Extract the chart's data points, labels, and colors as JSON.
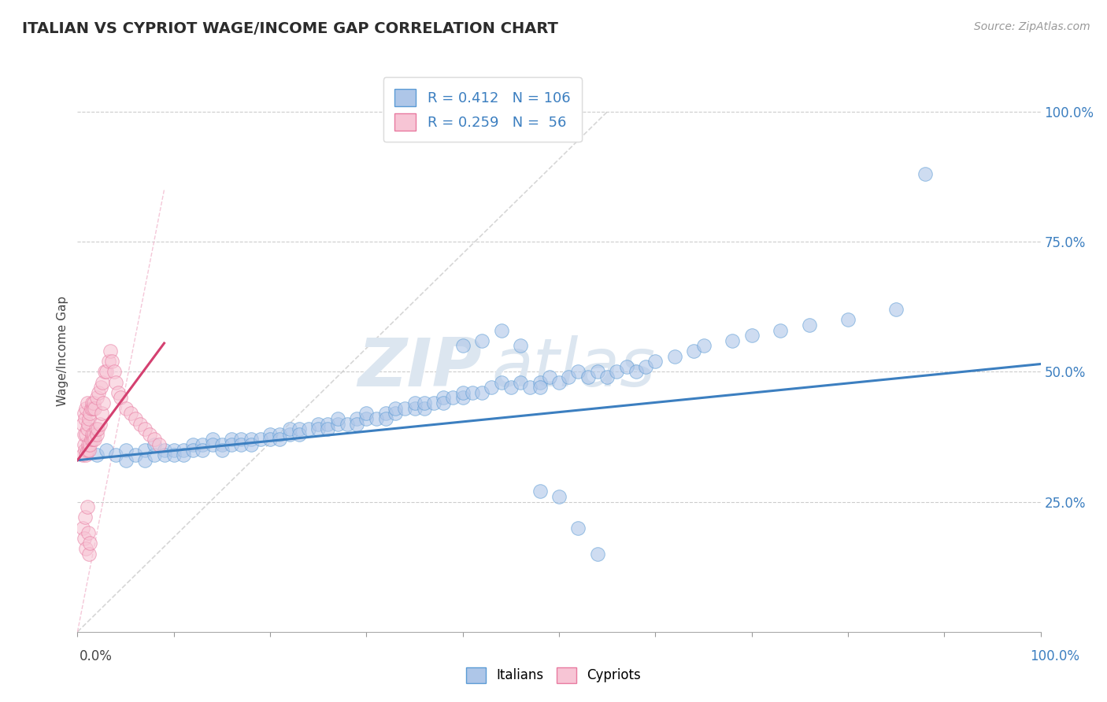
{
  "title": "ITALIAN VS CYPRIOT WAGE/INCOME GAP CORRELATION CHART",
  "source": "Source: ZipAtlas.com",
  "ylabel": "Wage/Income Gap",
  "ytick_values": [
    0.25,
    0.5,
    0.75,
    1.0
  ],
  "legend_labels": [
    "Italians",
    "Cypriots"
  ],
  "legend_italian": {
    "R": 0.412,
    "N": 106
  },
  "legend_cypriot": {
    "R": 0.259,
    "N": 56
  },
  "italian_color": "#aec6e8",
  "cypriot_color": "#f7c5d5",
  "italian_edge_color": "#5b9bd5",
  "cypriot_edge_color": "#e87aa0",
  "italian_line_color": "#3c7fc0",
  "cypriot_line_color": "#d44070",
  "ref_line_color": "#cccccc",
  "background_color": "#ffffff",
  "title_color": "#2c2c2c",
  "axis_color": "#999999",
  "legend_text_color": "#3c7fc0",
  "watermark_zip": "ZIP",
  "watermark_atlas": "atlas",
  "watermark_color": "#dce6f0",
  "italian_scatter_x": [
    0.02,
    0.03,
    0.04,
    0.05,
    0.05,
    0.06,
    0.07,
    0.07,
    0.08,
    0.08,
    0.09,
    0.09,
    0.1,
    0.1,
    0.11,
    0.11,
    0.12,
    0.12,
    0.13,
    0.13,
    0.14,
    0.14,
    0.15,
    0.15,
    0.16,
    0.16,
    0.17,
    0.17,
    0.18,
    0.18,
    0.19,
    0.2,
    0.2,
    0.21,
    0.21,
    0.22,
    0.22,
    0.23,
    0.23,
    0.24,
    0.25,
    0.25,
    0.26,
    0.26,
    0.27,
    0.27,
    0.28,
    0.29,
    0.29,
    0.3,
    0.3,
    0.31,
    0.32,
    0.32,
    0.33,
    0.33,
    0.34,
    0.35,
    0.35,
    0.36,
    0.36,
    0.37,
    0.38,
    0.38,
    0.39,
    0.4,
    0.4,
    0.41,
    0.42,
    0.43,
    0.44,
    0.45,
    0.46,
    0.47,
    0.48,
    0.48,
    0.49,
    0.5,
    0.51,
    0.52,
    0.53,
    0.54,
    0.55,
    0.56,
    0.57,
    0.58,
    0.59,
    0.6,
    0.62,
    0.64,
    0.65,
    0.68,
    0.7,
    0.73,
    0.76,
    0.8,
    0.85,
    0.88,
    0.4,
    0.42,
    0.44,
    0.46,
    0.48,
    0.5,
    0.52,
    0.54
  ],
  "italian_scatter_y": [
    0.34,
    0.35,
    0.34,
    0.35,
    0.33,
    0.34,
    0.35,
    0.33,
    0.34,
    0.36,
    0.35,
    0.34,
    0.35,
    0.34,
    0.35,
    0.34,
    0.36,
    0.35,
    0.36,
    0.35,
    0.37,
    0.36,
    0.36,
    0.35,
    0.37,
    0.36,
    0.37,
    0.36,
    0.37,
    0.36,
    0.37,
    0.38,
    0.37,
    0.38,
    0.37,
    0.38,
    0.39,
    0.39,
    0.38,
    0.39,
    0.4,
    0.39,
    0.4,
    0.39,
    0.4,
    0.41,
    0.4,
    0.41,
    0.4,
    0.41,
    0.42,
    0.41,
    0.42,
    0.41,
    0.42,
    0.43,
    0.43,
    0.43,
    0.44,
    0.43,
    0.44,
    0.44,
    0.45,
    0.44,
    0.45,
    0.45,
    0.46,
    0.46,
    0.46,
    0.47,
    0.48,
    0.47,
    0.48,
    0.47,
    0.48,
    0.47,
    0.49,
    0.48,
    0.49,
    0.5,
    0.49,
    0.5,
    0.49,
    0.5,
    0.51,
    0.5,
    0.51,
    0.52,
    0.53,
    0.54,
    0.55,
    0.56,
    0.57,
    0.58,
    0.59,
    0.6,
    0.62,
    0.88,
    0.55,
    0.56,
    0.58,
    0.55,
    0.27,
    0.26,
    0.2,
    0.15
  ],
  "cypriot_scatter_x": [
    0.005,
    0.005,
    0.007,
    0.007,
    0.007,
    0.008,
    0.008,
    0.009,
    0.009,
    0.009,
    0.01,
    0.01,
    0.01,
    0.011,
    0.011,
    0.012,
    0.012,
    0.013,
    0.013,
    0.014,
    0.014,
    0.015,
    0.015,
    0.016,
    0.016,
    0.017,
    0.017,
    0.018,
    0.018,
    0.019,
    0.02,
    0.02,
    0.021,
    0.022,
    0.023,
    0.024,
    0.025,
    0.026,
    0.027,
    0.028,
    0.03,
    0.032,
    0.034,
    0.036,
    0.038,
    0.04,
    0.042,
    0.045,
    0.05,
    0.055,
    0.06,
    0.065,
    0.07,
    0.075,
    0.08,
    0.085
  ],
  "cypriot_scatter_y": [
    0.34,
    0.4,
    0.36,
    0.42,
    0.38,
    0.35,
    0.41,
    0.34,
    0.38,
    0.43,
    0.35,
    0.39,
    0.44,
    0.36,
    0.4,
    0.35,
    0.41,
    0.36,
    0.42,
    0.37,
    0.43,
    0.38,
    0.44,
    0.37,
    0.43,
    0.38,
    0.44,
    0.37,
    0.43,
    0.39,
    0.38,
    0.45,
    0.39,
    0.46,
    0.4,
    0.47,
    0.42,
    0.48,
    0.44,
    0.5,
    0.5,
    0.52,
    0.54,
    0.52,
    0.5,
    0.48,
    0.46,
    0.45,
    0.43,
    0.42,
    0.41,
    0.4,
    0.39,
    0.38,
    0.37,
    0.36
  ],
  "cypriot_extra_x": [
    0.005,
    0.007,
    0.008,
    0.009,
    0.01,
    0.011,
    0.012,
    0.013
  ],
  "cypriot_extra_y": [
    0.2,
    0.18,
    0.22,
    0.16,
    0.24,
    0.19,
    0.15,
    0.17
  ],
  "italian_line_x": [
    0.0,
    1.0
  ],
  "italian_line_y": [
    0.33,
    0.515
  ],
  "cypriot_line_x": [
    0.0,
    0.09
  ],
  "cypriot_line_y": [
    0.33,
    0.555
  ],
  "ref_line_x": [
    0.0,
    0.55
  ],
  "ref_line_y": [
    0.0,
    1.0
  ],
  "xlim": [
    0.0,
    1.0
  ],
  "ylim": [
    0.0,
    1.08
  ]
}
